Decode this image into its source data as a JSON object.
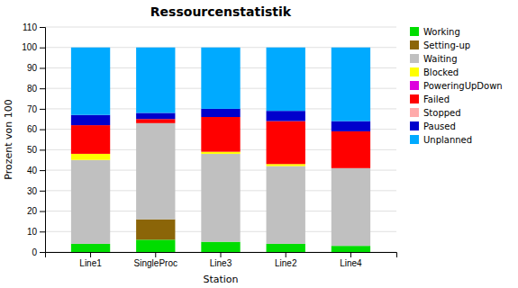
{
  "chart_data": {
    "type": "bar",
    "stacked": true,
    "title": "Ressourcenstatistik",
    "xlabel": "Station",
    "ylabel": "Prozent von 100",
    "categories": [
      "Line1",
      "SingleProc",
      "Line3",
      "Line2",
      "Line4"
    ],
    "series": [
      {
        "name": "Working",
        "color": "#00dd00",
        "values": [
          4,
          6,
          5,
          4,
          3
        ]
      },
      {
        "name": "Setting-up",
        "color": "#8B6508",
        "values": [
          0,
          10,
          0,
          0,
          0
        ]
      },
      {
        "name": "Waiting",
        "color": "#c0c0c0",
        "values": [
          41,
          47,
          43,
          38,
          38
        ]
      },
      {
        "name": "Blocked",
        "color": "#ffff00",
        "values": [
          3,
          0,
          1,
          1,
          0
        ]
      },
      {
        "name": "PoweringUpDown",
        "color": "#dd00dd",
        "values": [
          0,
          0,
          0,
          0,
          0
        ]
      },
      {
        "name": "Failed",
        "color": "#ff0000",
        "values": [
          14,
          2,
          17,
          21,
          18
        ]
      },
      {
        "name": "Stopped",
        "color": "#ffaaaa",
        "values": [
          0,
          0,
          0,
          0,
          0
        ]
      },
      {
        "name": "Paused",
        "color": "#0000cc",
        "values": [
          5,
          3,
          4,
          5,
          5
        ]
      },
      {
        "name": "Unplanned",
        "color": "#00aaff",
        "values": [
          33,
          32,
          30,
          31,
          36
        ]
      }
    ],
    "ylim": [
      0,
      110
    ],
    "yticks": [
      0,
      10,
      20,
      30,
      40,
      50,
      60,
      70,
      80,
      90,
      100,
      110
    ],
    "grid": true,
    "legend": "right"
  }
}
